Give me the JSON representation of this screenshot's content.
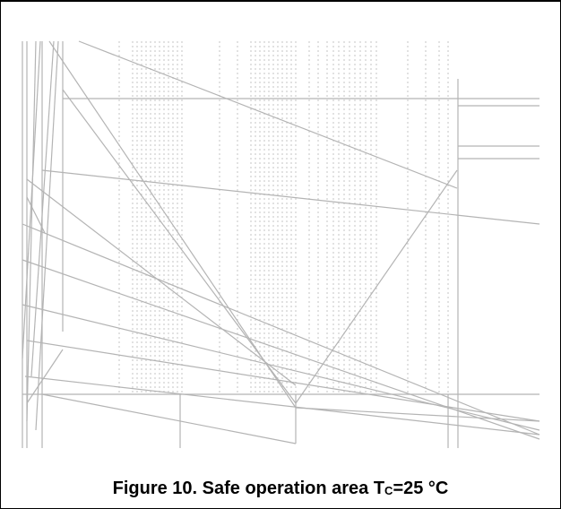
{
  "figure": {
    "caption_prefix": "Figure 10. Safe operation area T",
    "caption_subscript": "C",
    "caption_suffix": "=25 °C"
  },
  "colors": {
    "line": "#b4b4b4",
    "border": "#000000",
    "text": "#000000"
  }
}
